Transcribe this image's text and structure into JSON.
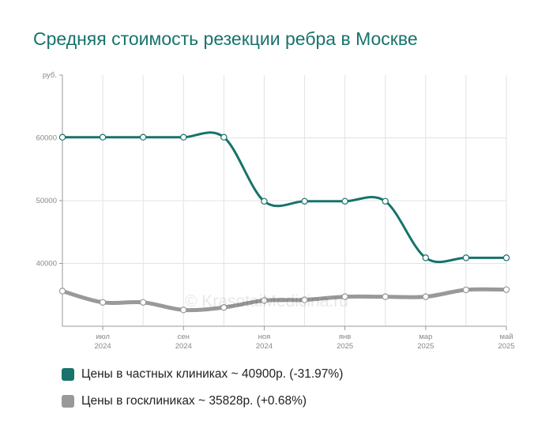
{
  "chart_data": {
    "type": "line",
    "title": "Средняя стоимость резекции ребра в Москве",
    "ylabel": "руб.",
    "ylim": [
      30000,
      70000
    ],
    "yticks": [
      "40000",
      "50000",
      "60000"
    ],
    "ytick_values": [
      40000,
      50000,
      60000
    ],
    "xticks": [
      {
        "month": "июл",
        "year": "2024",
        "index": 1
      },
      {
        "month": "сен",
        "year": "2024",
        "index": 3
      },
      {
        "month": "ноя",
        "year": "2024",
        "index": 5
      },
      {
        "month": "янв",
        "year": "2025",
        "index": 7
      },
      {
        "month": "мар",
        "year": "2025",
        "index": 9
      },
      {
        "month": "май",
        "year": "2025",
        "index": 11
      }
    ],
    "x": [
      "2024-06",
      "2024-07",
      "2024-08",
      "2024-09",
      "2024-10",
      "2024-11",
      "2024-12",
      "2025-01",
      "2025-02",
      "2025-03",
      "2025-04",
      "2025-05"
    ],
    "series": [
      {
        "name": "Цены в частных клиниках ~ 40900р. (-31.97%)",
        "color": "#17736b",
        "values": [
          60100,
          60100,
          60100,
          60100,
          60100,
          49900,
          49900,
          49900,
          49900,
          40900,
          40900,
          40900
        ]
      },
      {
        "name": "Цены в госклиниках ~ 35828р. (+0.68%)",
        "color": "#999999",
        "values": [
          35600,
          33800,
          33800,
          32600,
          33000,
          34100,
          34200,
          34700,
          34700,
          34700,
          35800,
          35828
        ]
      }
    ],
    "grid": true,
    "legend": "bottom"
  },
  "watermark": "© KrasotaiMedicina.ru"
}
